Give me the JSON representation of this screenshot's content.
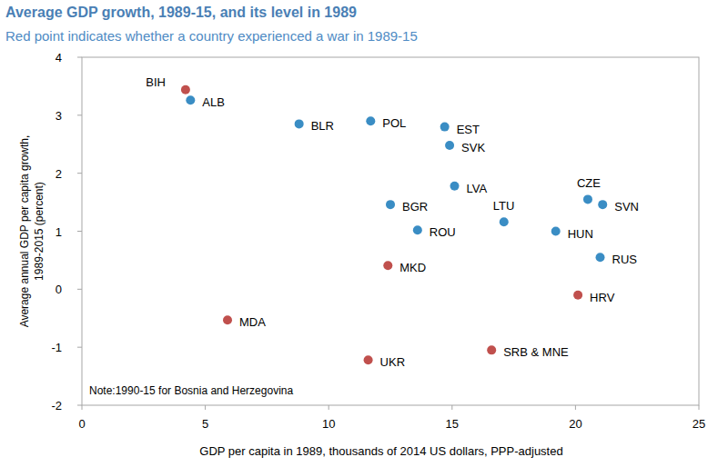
{
  "chart_data": {
    "type": "scatter",
    "title": "Average GDP growth, 1989-15, and its level in 1989",
    "subtitle": "Red point indicates whether a country experienced a war in 1989-15",
    "xlabel": "GDP per capita in 1989, thousands of 2014 US dollars, PPP-adjusted",
    "ylabel": [
      "Average annual GDP per capita growth,",
      "1989-2015 (percent)"
    ],
    "annotation": "Note:1990-15 for Bosnia and Herzegovina",
    "xlim": [
      0,
      25
    ],
    "xticks": [
      0,
      5,
      10,
      15,
      20,
      25
    ],
    "ylim": [
      -2,
      4
    ],
    "yticks": [
      -2,
      -1,
      0,
      1,
      2,
      3,
      4
    ],
    "grid": false,
    "x": [
      4.2,
      4.4,
      8.8,
      11.7,
      14.7,
      14.9,
      15.1,
      12.5,
      13.6,
      17.1,
      20.5,
      21.1,
      19.2,
      21.0,
      12.4,
      20.1,
      5.9,
      11.6,
      16.6
    ],
    "series": [
      {
        "marker": "circle",
        "values": [
          3.44,
          3.26,
          2.85,
          2.9,
          2.8,
          2.48,
          1.78,
          1.46,
          1.02,
          1.16,
          1.55,
          1.46,
          1.0,
          0.55,
          0.41,
          -0.1,
          -0.53,
          -1.22,
          -1.05
        ],
        "labels": [
          "BIH",
          "ALB",
          "BLR",
          "POL",
          "EST",
          "SVK",
          "LVA",
          "BGR",
          "ROU",
          "LTU",
          "CZE",
          "SVN",
          "HUN",
          "RUS",
          "MKD",
          "HRV",
          "MDA",
          "UKR",
          "SRB & MNE"
        ],
        "colors": [
          "#c0504d",
          "#3a8dc4",
          "#3a8dc4",
          "#3a8dc4",
          "#3a8dc4",
          "#3a8dc4",
          "#3a8dc4",
          "#3a8dc4",
          "#3a8dc4",
          "#3a8dc4",
          "#3a8dc4",
          "#3a8dc4",
          "#3a8dc4",
          "#3a8dc4",
          "#c0504d",
          "#c0504d",
          "#c0504d",
          "#c0504d",
          "#c0504d"
        ]
      }
    ]
  }
}
